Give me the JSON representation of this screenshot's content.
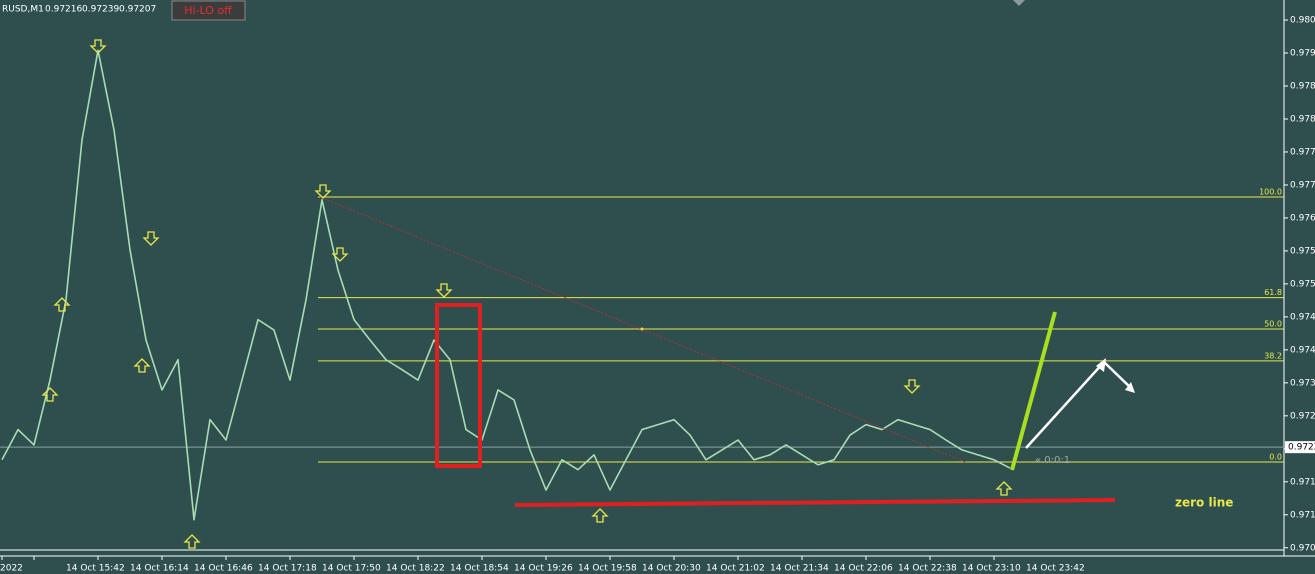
{
  "header": {
    "symbol": "RUSD,M1",
    "ohlc": [
      0.97216,
      0.97239,
      0.97207
    ],
    "button": "Hi-LO off"
  },
  "chart_data": {
    "type": "line",
    "categories": [
      "2022",
      null,
      "14 Oct 15:42",
      null,
      null,
      null,
      "14 Oct 16:14",
      null,
      null,
      null,
      "14 Oct 16:46",
      null,
      null,
      null,
      "14 Oct 17:18",
      null,
      null,
      null,
      "14 Oct 17:50",
      null,
      null,
      null,
      "14 Oct 18:22",
      null,
      null,
      null,
      "14 Oct 18:54",
      null,
      null,
      null,
      "14 Oct 19:26",
      null,
      null,
      null,
      "14 Oct 19:58",
      null,
      null,
      null,
      "14 Oct 20:30",
      null,
      null,
      null,
      "14 Oct 21:02",
      null,
      null,
      null,
      "14 Oct 21:34",
      null,
      null,
      null,
      "14 Oct 22:06",
      null,
      null,
      null,
      "14 Oct 22:38",
      null,
      null,
      null,
      "14 Oct 23:10",
      null,
      null,
      null,
      "14 Oct 23:42",
      null
    ],
    "series": [
      {
        "color": "#a8dcb4",
        "values": [
          0.972,
          0.97255,
          0.97227,
          0.97345,
          0.97491,
          0.97782,
          0.97945,
          0.978,
          0.97582,
          0.97418,
          0.97327,
          0.97382,
          0.97091,
          0.97273,
          0.97236,
          0.97345,
          0.97455,
          0.97436,
          0.97345,
          0.97491,
          0.97673,
          0.97545,
          0.97455,
          0.97418,
          0.97382,
          0.97364,
          0.97345,
          0.97418,
          0.97382,
          0.97255,
          0.97236,
          0.97327,
          0.97309,
          0.97218,
          0.97145,
          0.972,
          0.97182,
          0.97209,
          0.97145,
          0.972,
          0.97255,
          0.97264,
          0.97273,
          0.97245,
          0.972,
          0.97218,
          0.97236,
          0.972,
          0.97209,
          0.97227,
          0.97209,
          0.97191,
          0.972,
          0.97245,
          0.97264,
          0.97255,
          0.97273,
          0.97264,
          0.97255,
          0.97236,
          0.97218,
          0.97209,
          0.972,
          0.97185
        ]
      }
    ],
    "ylim": [
      0.97025,
      0.98031
    ],
    "yticks": [
      {
        "value": 0.98,
        "label": "0.9800"
      },
      {
        "value": 0.9794,
        "label": "0.9794"
      },
      {
        "value": 0.9788,
        "label": "0.9788"
      },
      {
        "value": 0.9782,
        "label": "0.9782"
      },
      {
        "value": 0.9776,
        "label": "0.9776"
      },
      {
        "value": 0.977,
        "label": "0.9770"
      },
      {
        "value": 0.9764,
        "label": "0.9764"
      },
      {
        "value": 0.9758,
        "label": "0.9758"
      },
      {
        "value": 0.9752,
        "label": "0.9752"
      },
      {
        "value": 0.9746,
        "label": "0.9746"
      },
      {
        "value": 0.974,
        "label": "0.9740"
      },
      {
        "value": 0.9734,
        "label": "0.9734"
      },
      {
        "value": 0.9728,
        "label": "0.9728"
      },
      {
        "value": 0.9722,
        "label": "0.9722"
      },
      {
        "value": 0.9716,
        "label": "0.9716"
      },
      {
        "value": 0.971,
        "label": "0.9710"
      },
      {
        "value": 0.9704,
        "label": "0.9704"
      }
    ],
    "current_price": {
      "value": 0.97223,
      "label": "0.9722"
    },
    "fibo_levels": [
      {
        "label": "100.0",
        "price": 0.97678
      },
      {
        "label": "61.8",
        "price": 0.97495
      },
      {
        "label": "50.0",
        "price": 0.97438
      },
      {
        "label": "38.2",
        "price": 0.9738
      },
      {
        "label": "0.0",
        "price": 0.97196
      }
    ],
    "fibo_color": "#e8e84a",
    "timer": "« 0:0:1",
    "annotation": "zero line"
  }
}
